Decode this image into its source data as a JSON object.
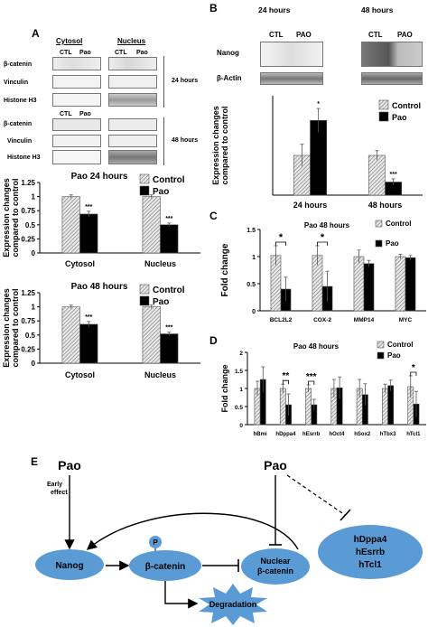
{
  "panel_labels": {
    "a": "A",
    "b": "B",
    "c": "C",
    "d": "D",
    "e": "E"
  },
  "panelA": {
    "col_cytosol": "Cytosol",
    "col_nucleus": "Nucleus",
    "lane_ctl": "CTL",
    "lane_pao": "Pao",
    "rows_24": [
      "β-catenin",
      "Vinculin",
      "Histone H3"
    ],
    "rows_48": [
      "β-catenin",
      "Vinculin",
      "Histone H3"
    ],
    "time_24": "24 hours",
    "time_48": "48 hours"
  },
  "panelB": {
    "time_24": "24 hours",
    "time_48": "48 hours",
    "lane_ctl": "CTL",
    "lane_pao": "PAO",
    "row_nanog": "Nanog",
    "row_actin": "β-Actin"
  },
  "panelE": {
    "pao_left": "Pao",
    "pao_right": "Pao",
    "early_effect": "Early\neffect",
    "nanog": "Nanog",
    "p": "P",
    "bcatenin": "β-catenin",
    "nuclear_bcatenin": "Nuclear\nβ-catenin",
    "degradation": "Degradation",
    "targets": [
      "hDppa4",
      "hEsrrb",
      "hTcl1"
    ]
  },
  "colors": {
    "control_fill": "#bbbbbb",
    "pao_fill": "#000000",
    "diagram_blue": "#5b9bd5"
  },
  "chart_data": [
    {
      "id": "A1",
      "type": "bar",
      "title": "Pao 24 hours",
      "categories": [
        "Cytosol",
        "Nucleus"
      ],
      "series": [
        {
          "name": "Control",
          "values": [
            1.0,
            1.0
          ]
        },
        {
          "name": "Pao",
          "values": [
            0.69,
            0.5
          ]
        }
      ],
      "errors": [
        [
          0.03,
          0.03
        ],
        [
          0.05,
          0.03
        ]
      ],
      "annotations": [
        {
          "cat": 0,
          "text": "***"
        },
        {
          "cat": 1,
          "text": "***"
        }
      ],
      "ylabel": "Expression changes\ncompared to control",
      "yticks": [
        "0",
        "0.25",
        "0.5",
        "0.75",
        "1",
        "1.25"
      ],
      "ylim": [
        0,
        1.25
      ]
    },
    {
      "id": "A2",
      "type": "bar",
      "title": "Pao 48 hours",
      "categories": [
        "Cytosol",
        "Nucleus"
      ],
      "series": [
        {
          "name": "Control",
          "values": [
            1.0,
            1.0
          ]
        },
        {
          "name": "Pao",
          "values": [
            0.69,
            0.52
          ]
        }
      ],
      "errors": [
        [
          0.03,
          0.03
        ],
        [
          0.05,
          0.03
        ]
      ],
      "annotations": [
        {
          "cat": 0,
          "text": "***"
        },
        {
          "cat": 1,
          "text": "***"
        }
      ],
      "ylabel": "Expression changes\ncompared to control",
      "yticks": [
        "0",
        "0.25",
        "0.5",
        "0.75",
        "1",
        "1.25"
      ],
      "ylim": [
        0,
        1.25
      ]
    },
    {
      "id": "B",
      "type": "bar",
      "title": "",
      "categories": [
        "24 hours",
        "48 hours"
      ],
      "series": [
        {
          "name": "Control",
          "values": [
            1.0,
            1.0
          ]
        },
        {
          "name": "Pao",
          "values": [
            1.88,
            0.33
          ]
        }
      ],
      "errors": [
        [
          0.28,
          0.12
        ],
        [
          0.3,
          0.08
        ]
      ],
      "annotations": [
        {
          "cat": 0,
          "text": "*"
        },
        {
          "cat": 1,
          "text": "***"
        }
      ],
      "ylabel": "Expression changes\ncompared to control",
      "yticks": [],
      "ylim": [
        0,
        2.5
      ]
    },
    {
      "id": "C",
      "type": "bar",
      "title": "Pao 48 hours",
      "categories": [
        "BCL2L2",
        "COX-2",
        "MMP14",
        "MYC"
      ],
      "series": [
        {
          "name": "Control",
          "values": [
            1.02,
            1.02,
            1.0,
            1.0
          ]
        },
        {
          "name": "Pao",
          "values": [
            0.4,
            0.45,
            0.87,
            0.98
          ]
        }
      ],
      "errors": [
        [
          0.18,
          0.18,
          0.12,
          0.04
        ],
        [
          0.22,
          0.28,
          0.06,
          0.04
        ]
      ],
      "brackets": [
        {
          "cat": 0,
          "text": "*"
        },
        {
          "cat": 1,
          "text": "*"
        }
      ],
      "ylabel": "Fold change",
      "yticks": [
        "0",
        "0.5",
        "1",
        "1.5"
      ],
      "ylim": [
        0,
        1.5
      ]
    },
    {
      "id": "D",
      "type": "bar",
      "title": "Pao 48 hours",
      "categories": [
        "hBmi",
        "hDppa4",
        "hEsrrb",
        "hOct4",
        "hSox2",
        "hTbx3",
        "hTcl1"
      ],
      "series": [
        {
          "name": "Control",
          "values": [
            1.0,
            1.0,
            1.0,
            1.0,
            1.0,
            1.0,
            1.05
          ]
        },
        {
          "name": "Pao",
          "values": [
            1.25,
            0.55,
            0.55,
            1.02,
            0.83,
            1.08,
            0.57
          ]
        }
      ],
      "errors": [
        [
          0.2,
          0.12,
          0.1,
          0.25,
          0.25,
          0.12,
          0.3
        ],
        [
          0.35,
          0.3,
          0.15,
          0.3,
          0.3,
          0.15,
          0.35
        ]
      ],
      "brackets": [
        {
          "cat": 1,
          "text": "**"
        },
        {
          "cat": 2,
          "text": "***"
        },
        {
          "cat": 6,
          "text": "*"
        }
      ],
      "ylabel": "Fold change",
      "yticks": [
        "0",
        "0.5",
        "1",
        "1.5",
        "2"
      ],
      "ylim": [
        0,
        2
      ]
    }
  ]
}
